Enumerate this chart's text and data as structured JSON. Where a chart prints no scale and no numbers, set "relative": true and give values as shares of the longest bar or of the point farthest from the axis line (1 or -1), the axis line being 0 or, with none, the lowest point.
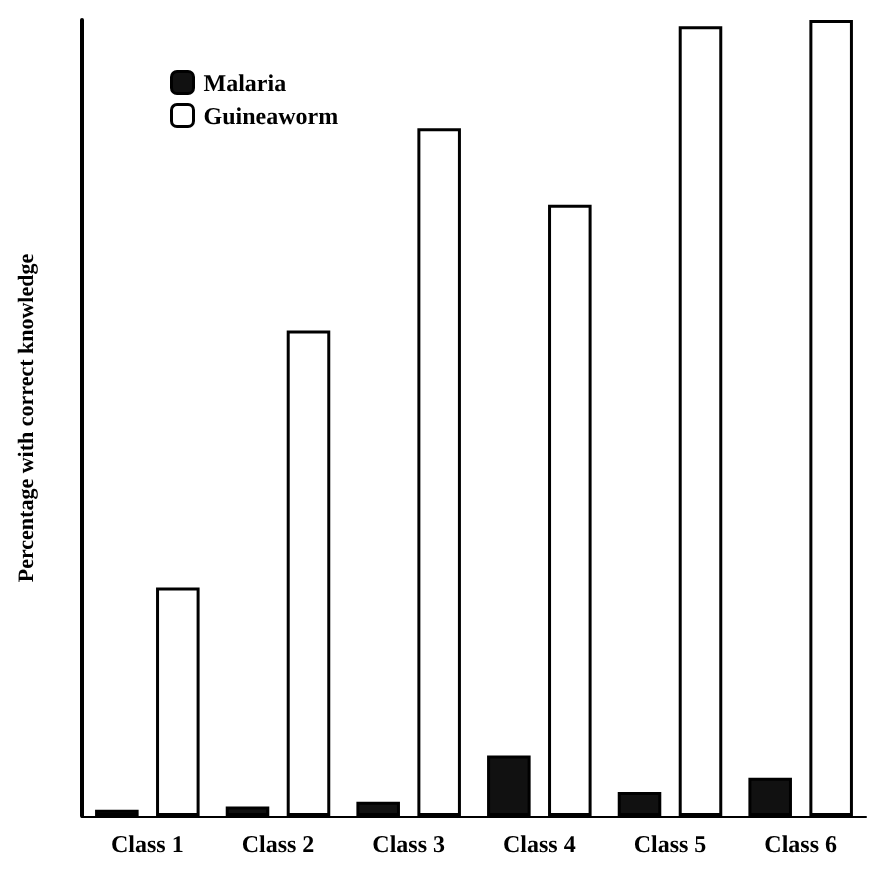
{
  "chart_data": {
    "type": "bar",
    "relative": true,
    "ylabel": "Percentage with correct knowledge",
    "categories": [
      "Class 1",
      "Class 2",
      "Class 3",
      "Class 4",
      "Class 5",
      "Class 6"
    ],
    "series": [
      {
        "name": "Malaria",
        "color": "#111111",
        "values": [
          0.008,
          0.012,
          0.018,
          0.076,
          0.03,
          0.048
        ]
      },
      {
        "name": "Guineaworm",
        "color": "#ffffff",
        "values": [
          0.287,
          0.61,
          0.864,
          0.768,
          0.992,
          1
        ]
      }
    ],
    "legend": "top left",
    "grid": false
  }
}
